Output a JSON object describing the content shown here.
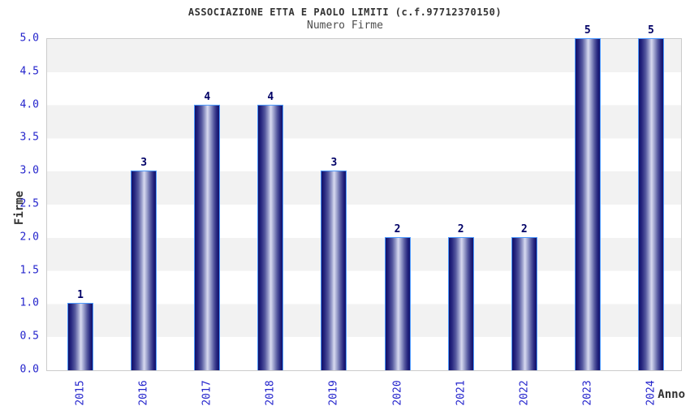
{
  "header": {
    "title": "ASSOCIAZIONE ETTA E PAOLO LIMITI (c.f.97712370150)",
    "subtitle": "Numero Firme"
  },
  "chart_data": {
    "type": "bar",
    "title": "ASSOCIAZIONE ETTA E PAOLO LIMITI (c.f.97712370150)",
    "subtitle": "Numero Firme",
    "categories": [
      "2015",
      "2016",
      "2017",
      "2018",
      "2019",
      "2020",
      "2021",
      "2022",
      "2023",
      "2024"
    ],
    "values": [
      1,
      3,
      4,
      4,
      3,
      2,
      2,
      2,
      5,
      5
    ],
    "xlabel": "Anno",
    "ylabel": "Firme",
    "ylim": [
      0,
      5
    ],
    "ytick_step": 0.5,
    "yticks": [
      "5.0",
      "4.5",
      "4.0",
      "3.5",
      "3.0",
      "2.5",
      "2.0",
      "1.5",
      "1.0",
      "0.5",
      "0.0"
    ],
    "grid": "alternating-horizontal-bands",
    "legend": "none",
    "bar_value_labels_shown": true
  },
  "colors": {
    "title": "#333333",
    "subtitle": "#4d4d4d",
    "axis_title": "#333333",
    "tick_label": "#2424cc",
    "value_label": "#000066",
    "band_gray": "#f2f2f2",
    "band_white": "#ffffff",
    "plot_border": "#cccccc",
    "bar_outline": "#4d9aff",
    "bar_dark": "#10106a",
    "bar_light": "#d8daf0"
  }
}
